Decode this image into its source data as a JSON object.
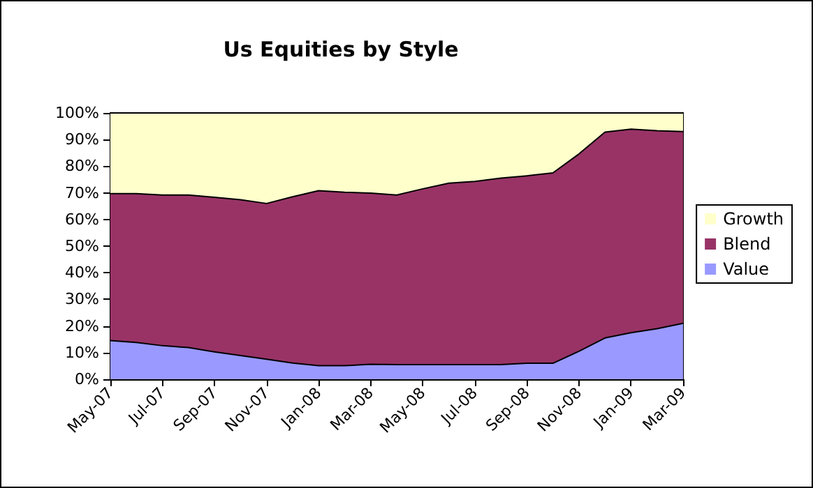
{
  "chart_data": {
    "type": "area",
    "title": "Us Equities by Style",
    "stacked": true,
    "categories": [
      "May-07",
      null,
      "Jul-07",
      null,
      "Sep-07",
      null,
      "Nov-07",
      null,
      "Jan-08",
      null,
      "Mar-08",
      null,
      "May-08",
      null,
      "Jul-08",
      null,
      "Sep-08",
      null,
      "Nov-08",
      null,
      "Jan-09",
      null,
      "Mar-09"
    ],
    "series": [
      {
        "name": "Value",
        "color": "#9999ff",
        "values": [
          14.5,
          13.8,
          12.6,
          11.9,
          10.3,
          8.9,
          7.5,
          6.1,
          5.1,
          5.1,
          5.6,
          5.5,
          5.5,
          5.5,
          5.5,
          5.5,
          6,
          6,
          10.5,
          15.5,
          17.5,
          19,
          21
        ]
      },
      {
        "name": "Blend",
        "color": "#993366",
        "values": [
          55.2,
          55.9,
          56.6,
          57.3,
          58,
          58.5,
          58.5,
          62.4,
          65.7,
          65.1,
          64.3,
          63.7,
          66,
          68.1,
          68.8,
          70,
          70.4,
          71.5,
          74.1,
          77.3,
          76.4,
          74.3,
          72
        ]
      },
      {
        "name": "Growth",
        "color": "#ffffcc",
        "values": [
          30.3,
          30.3,
          30.8,
          30.8,
          31.7,
          32.6,
          34,
          31.5,
          29.2,
          29.8,
          30.1,
          30.8,
          28.5,
          26.4,
          25.7,
          24.5,
          23.6,
          22.5,
          15.4,
          7.2,
          6.1,
          6.7,
          7
        ]
      }
    ],
    "ylim": [
      0,
      100
    ],
    "yticks": [
      {
        "value": 0,
        "label": "0%"
      },
      {
        "value": 10,
        "label": "10%"
      },
      {
        "value": 20,
        "label": "20%"
      },
      {
        "value": 30,
        "label": "30%"
      },
      {
        "value": 40,
        "label": "40%"
      },
      {
        "value": 50,
        "label": "50%"
      },
      {
        "value": 60,
        "label": "60%"
      },
      {
        "value": 70,
        "label": "70%"
      },
      {
        "value": 80,
        "label": "80%"
      },
      {
        "value": 90,
        "label": "90%"
      },
      {
        "value": 100,
        "label": "100%"
      }
    ],
    "grid": false,
    "legend": "right",
    "line_style": "solid",
    "marker": "none"
  }
}
